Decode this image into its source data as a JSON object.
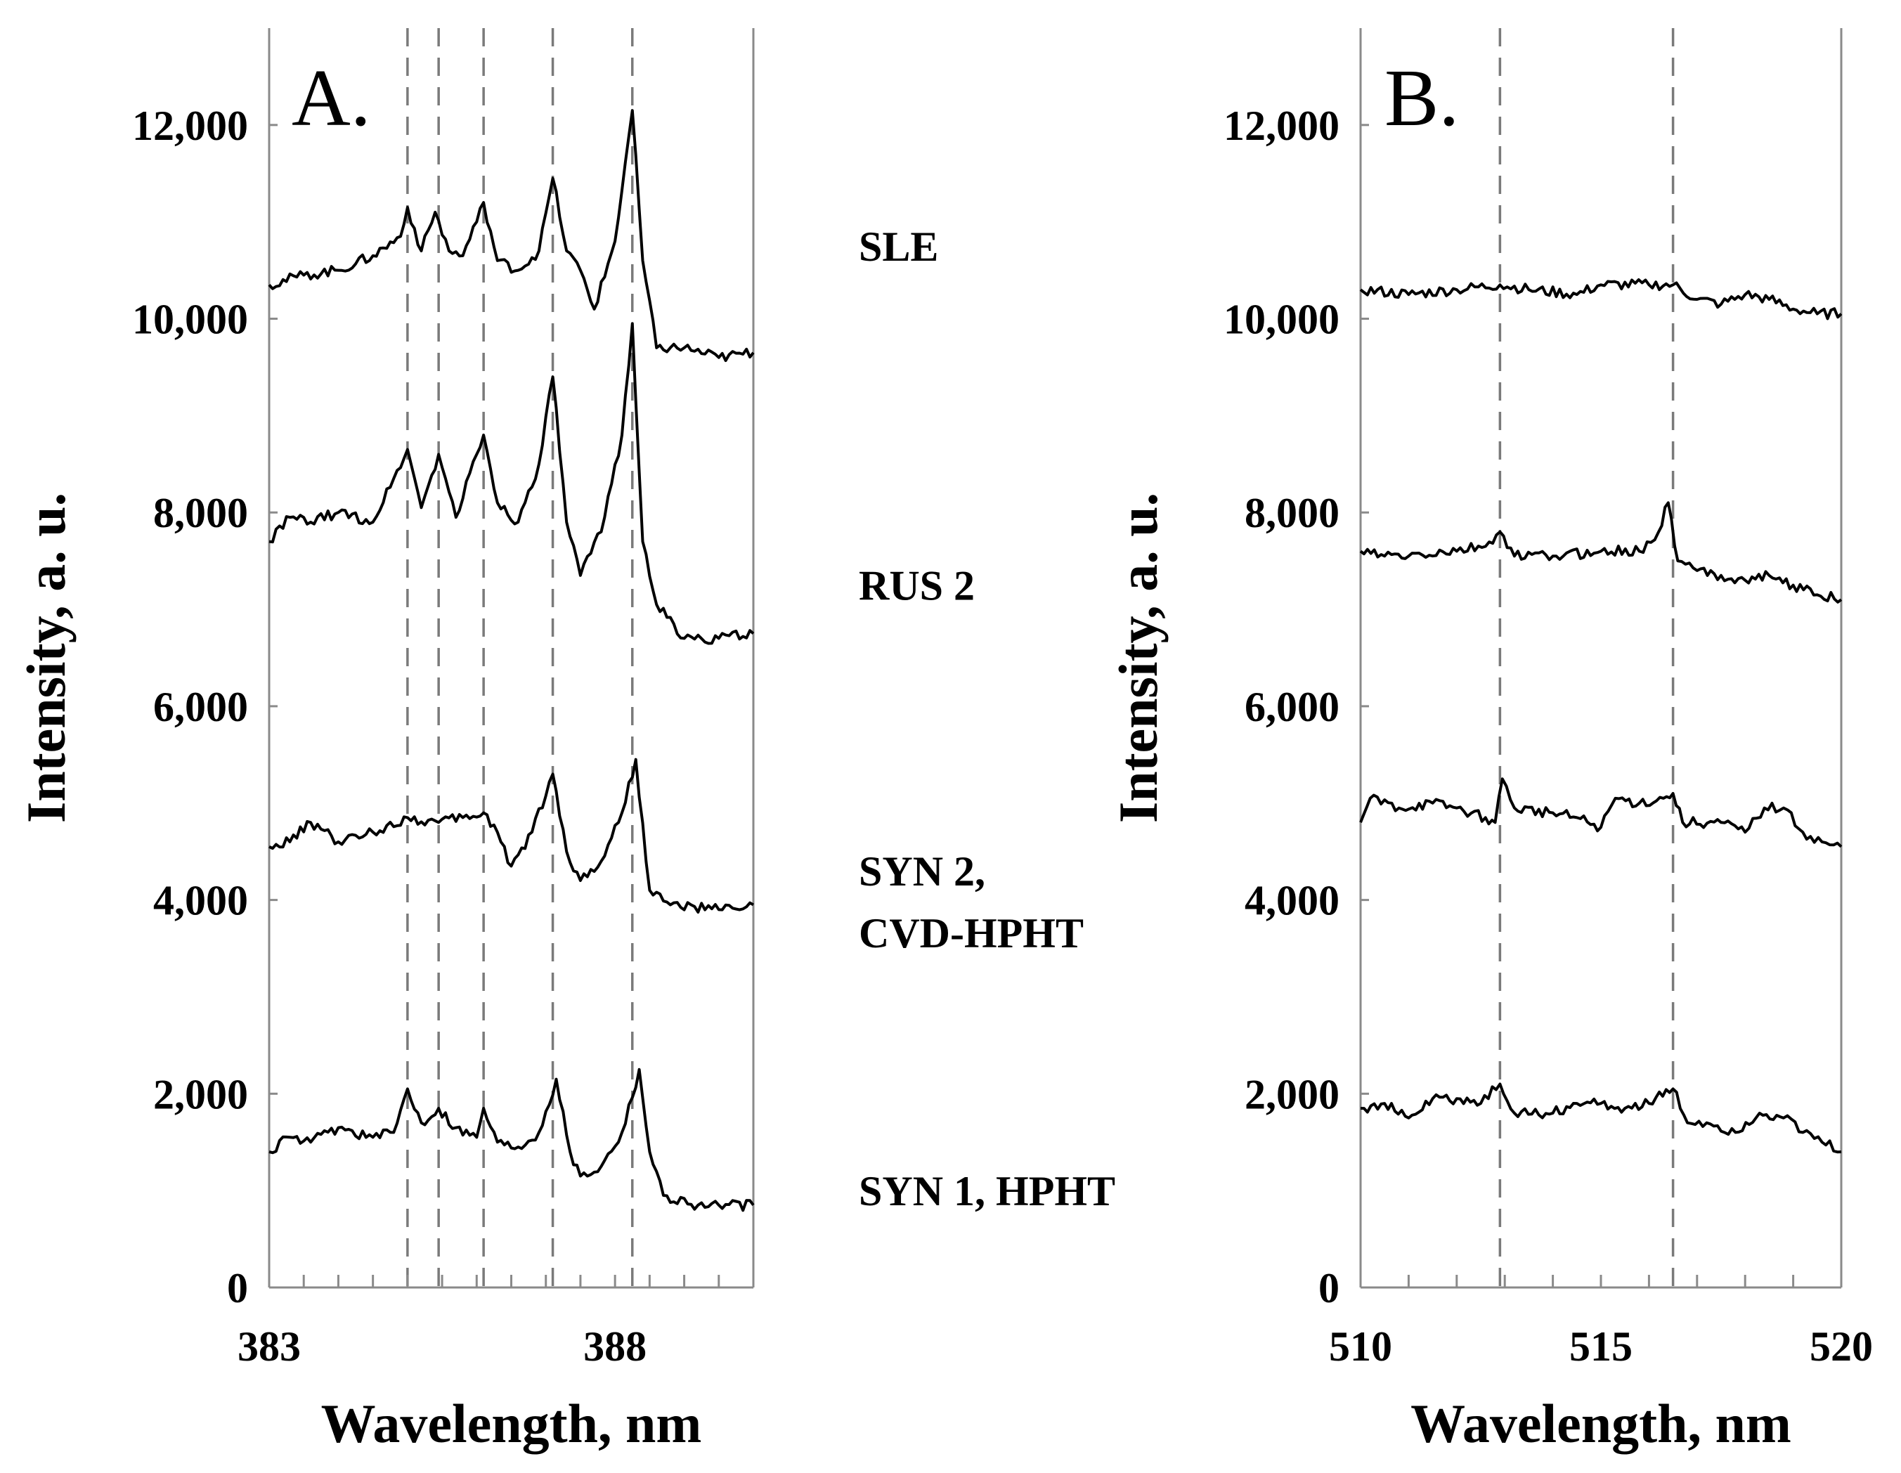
{
  "chart_data": [
    {
      "type": "line",
      "panel_label": "A.",
      "xlabel": "Wavelength, nm",
      "ylabel": "Intensity, a. u.",
      "xlim": [
        383,
        390
      ],
      "ylim": [
        0,
        13000
      ],
      "x_ticks": [
        383,
        388
      ],
      "x_tick_labels": [
        "383",
        "388"
      ],
      "y_ticks": [
        0,
        2000,
        4000,
        6000,
        8000,
        10000,
        12000
      ],
      "y_tick_labels": [
        "0",
        "2,000",
        "4,000",
        "6,000",
        "8,000",
        "10,000",
        "12,000"
      ],
      "reference_lines": [
        385.0,
        385.45,
        386.1,
        387.1,
        388.25
      ],
      "series": [
        {
          "name": "SLE",
          "points": [
            [
              383.0,
              10350
            ],
            [
              383.5,
              10450
            ],
            [
              384.0,
              10500
            ],
            [
              384.5,
              10650
            ],
            [
              384.9,
              10850
            ],
            [
              385.0,
              11150
            ],
            [
              385.2,
              10700
            ],
            [
              385.4,
              11100
            ],
            [
              385.6,
              10700
            ],
            [
              385.8,
              10650
            ],
            [
              386.0,
              11000
            ],
            [
              386.1,
              11200
            ],
            [
              386.3,
              10600
            ],
            [
              386.6,
              10500
            ],
            [
              386.9,
              10700
            ],
            [
              387.1,
              11450
            ],
            [
              387.3,
              10700
            ],
            [
              387.5,
              10500
            ],
            [
              387.7,
              10100
            ],
            [
              388.0,
              10800
            ],
            [
              388.25,
              12150
            ],
            [
              388.4,
              10600
            ],
            [
              388.6,
              9700
            ],
            [
              389.0,
              9700
            ],
            [
              389.5,
              9600
            ],
            [
              390.0,
              9650
            ]
          ]
        },
        {
          "name": "RUS 2",
          "points": [
            [
              383.0,
              7700
            ],
            [
              383.3,
              7950
            ],
            [
              383.6,
              7900
            ],
            [
              384.0,
              8000
            ],
            [
              384.5,
              7900
            ],
            [
              384.8,
              8350
            ],
            [
              385.0,
              8650
            ],
            [
              385.2,
              8050
            ],
            [
              385.45,
              8600
            ],
            [
              385.7,
              7950
            ],
            [
              386.0,
              8600
            ],
            [
              386.1,
              8800
            ],
            [
              386.3,
              8100
            ],
            [
              386.6,
              7900
            ],
            [
              386.9,
              8500
            ],
            [
              387.1,
              9400
            ],
            [
              387.3,
              7900
            ],
            [
              387.5,
              7350
            ],
            [
              387.8,
              7800
            ],
            [
              388.1,
              8800
            ],
            [
              388.25,
              9950
            ],
            [
              388.4,
              7700
            ],
            [
              388.6,
              7050
            ],
            [
              389.0,
              6700
            ],
            [
              389.5,
              6700
            ],
            [
              390.0,
              6750
            ]
          ]
        },
        {
          "name": "SYN 2, CVD-HPHT",
          "points": [
            [
              383.0,
              4550
            ],
            [
              383.3,
              4600
            ],
            [
              383.6,
              4800
            ],
            [
              384.0,
              4600
            ],
            [
              384.5,
              4700
            ],
            [
              385.0,
              4850
            ],
            [
              385.45,
              4800
            ],
            [
              385.8,
              4850
            ],
            [
              386.1,
              4900
            ],
            [
              386.3,
              4700
            ],
            [
              386.5,
              4350
            ],
            [
              386.8,
              4700
            ],
            [
              387.1,
              5300
            ],
            [
              387.3,
              4500
            ],
            [
              387.5,
              4200
            ],
            [
              387.8,
              4400
            ],
            [
              388.1,
              4900
            ],
            [
              388.3,
              5450
            ],
            [
              388.5,
              4100
            ],
            [
              388.8,
              3950
            ],
            [
              389.5,
              3900
            ],
            [
              390.0,
              3950
            ]
          ]
        },
        {
          "name": "SYN 1, HPHT",
          "points": [
            [
              383.0,
              1400
            ],
            [
              383.3,
              1550
            ],
            [
              383.6,
              1500
            ],
            [
              384.0,
              1650
            ],
            [
              384.5,
              1550
            ],
            [
              384.8,
              1600
            ],
            [
              385.0,
              2050
            ],
            [
              385.2,
              1700
            ],
            [
              385.45,
              1850
            ],
            [
              385.7,
              1650
            ],
            [
              386.0,
              1550
            ],
            [
              386.1,
              1850
            ],
            [
              386.3,
              1500
            ],
            [
              386.6,
              1450
            ],
            [
              386.9,
              1600
            ],
            [
              387.15,
              2150
            ],
            [
              387.35,
              1400
            ],
            [
              387.5,
              1150
            ],
            [
              387.8,
              1250
            ],
            [
              388.1,
              1600
            ],
            [
              388.35,
              2250
            ],
            [
              388.5,
              1400
            ],
            [
              388.7,
              950
            ],
            [
              389.2,
              850
            ],
            [
              389.5,
              850
            ],
            [
              390.0,
              850
            ]
          ]
        }
      ]
    },
    {
      "type": "line",
      "panel_label": "B.",
      "xlabel": "Wavelength, nm",
      "ylabel": "Intensity, a. u.",
      "xlim": [
        510,
        520
      ],
      "ylim": [
        0,
        13000
      ],
      "x_ticks": [
        510,
        515,
        520
      ],
      "x_tick_labels": [
        "510",
        "515",
        "520"
      ],
      "y_ticks": [
        0,
        2000,
        4000,
        6000,
        8000,
        10000,
        12000
      ],
      "y_tick_labels": [
        "0",
        "2,000",
        "4,000",
        "6,000",
        "8,000",
        "10,000",
        "12,000"
      ],
      "reference_lines": [
        512.9,
        516.5
      ],
      "series": [
        {
          "name": "SLE",
          "points": [
            [
              510.0,
              10300
            ],
            [
              511.0,
              10250
            ],
            [
              512.0,
              10300
            ],
            [
              512.9,
              10350
            ],
            [
              513.5,
              10300
            ],
            [
              514.5,
              10250
            ],
            [
              515.0,
              10350
            ],
            [
              516.0,
              10350
            ],
            [
              516.5,
              10350
            ],
            [
              517.0,
              10200
            ],
            [
              517.5,
              10150
            ],
            [
              518.0,
              10250
            ],
            [
              518.5,
              10200
            ],
            [
              519.0,
              10100
            ],
            [
              519.5,
              10050
            ],
            [
              520.0,
              10050
            ]
          ]
        },
        {
          "name": "RUS 2",
          "points": [
            [
              510.0,
              7600
            ],
            [
              510.5,
              7550
            ],
            [
              511.0,
              7550
            ],
            [
              512.0,
              7600
            ],
            [
              512.6,
              7650
            ],
            [
              512.9,
              7800
            ],
            [
              513.2,
              7550
            ],
            [
              514.0,
              7550
            ],
            [
              515.0,
              7600
            ],
            [
              515.8,
              7600
            ],
            [
              516.2,
              7800
            ],
            [
              516.4,
              8100
            ],
            [
              516.6,
              7500
            ],
            [
              517.0,
              7400
            ],
            [
              517.5,
              7350
            ],
            [
              518.0,
              7300
            ],
            [
              518.5,
              7350
            ],
            [
              519.0,
              7250
            ],
            [
              519.5,
              7150
            ],
            [
              520.0,
              7100
            ]
          ]
        },
        {
          "name": "SYN 2, CVD-HPHT",
          "points": [
            [
              510.0,
              4800
            ],
            [
              510.2,
              5050
            ],
            [
              510.8,
              4950
            ],
            [
              511.5,
              5000
            ],
            [
              512.0,
              4950
            ],
            [
              512.6,
              4850
            ],
            [
              512.8,
              4800
            ],
            [
              512.95,
              5250
            ],
            [
              513.2,
              4950
            ],
            [
              514.0,
              4900
            ],
            [
              514.5,
              4850
            ],
            [
              515.0,
              4750
            ],
            [
              515.3,
              5050
            ],
            [
              515.8,
              5000
            ],
            [
              516.3,
              5050
            ],
            [
              516.5,
              5100
            ],
            [
              516.7,
              4800
            ],
            [
              517.5,
              4800
            ],
            [
              518.0,
              4700
            ],
            [
              518.4,
              4950
            ],
            [
              518.8,
              4950
            ],
            [
              519.2,
              4700
            ],
            [
              519.6,
              4600
            ],
            [
              520.0,
              4550
            ]
          ]
        },
        {
          "name": "SYN 1, HPHT",
          "points": [
            [
              510.0,
              1850
            ],
            [
              510.5,
              1900
            ],
            [
              511.0,
              1750
            ],
            [
              511.5,
              1950
            ],
            [
              512.0,
              1950
            ],
            [
              512.5,
              1900
            ],
            [
              512.9,
              2100
            ],
            [
              513.2,
              1800
            ],
            [
              514.0,
              1800
            ],
            [
              514.5,
              1900
            ],
            [
              515.0,
              1900
            ],
            [
              515.5,
              1850
            ],
            [
              516.0,
              1900
            ],
            [
              516.5,
              2050
            ],
            [
              516.8,
              1700
            ],
            [
              517.2,
              1700
            ],
            [
              517.8,
              1600
            ],
            [
              518.3,
              1800
            ],
            [
              518.8,
              1750
            ],
            [
              519.2,
              1600
            ],
            [
              519.6,
              1500
            ],
            [
              520.0,
              1400
            ]
          ]
        }
      ]
    }
  ],
  "series_labels": [
    {
      "lines": [
        "SLE"
      ],
      "anchor_value": 10600
    },
    {
      "lines": [
        "RUS 2"
      ],
      "anchor_value": 7100
    },
    {
      "lines": [
        "SYN 2,",
        "CVD-HPHT"
      ],
      "anchor_value": 4150
    },
    {
      "lines": [
        "SYN 1, HPHT"
      ],
      "anchor_value": 850
    }
  ]
}
